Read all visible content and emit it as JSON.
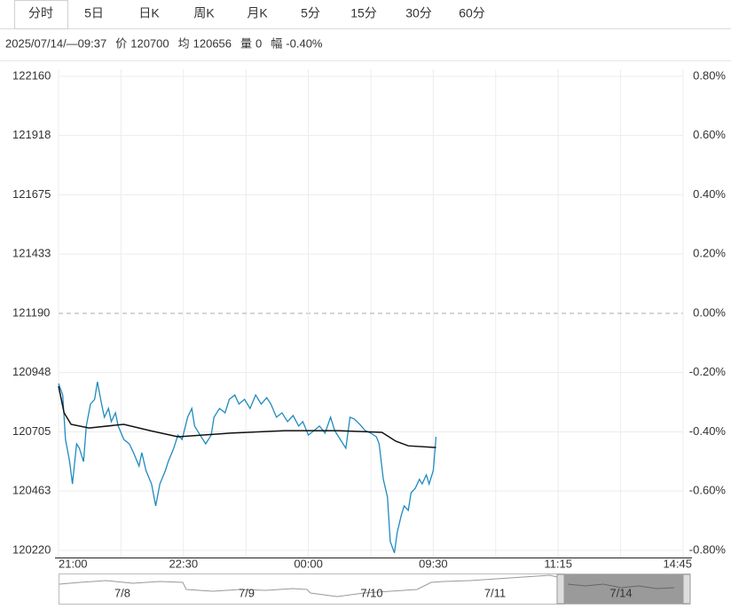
{
  "tabs": [
    "分时",
    "5日",
    "日K",
    "周K",
    "月K",
    "5分",
    "15分",
    "30分",
    "60分"
  ],
  "info": {
    "datetime": "2025/07/14/—09:37",
    "items": [
      {
        "label": "价",
        "value": "120700"
      },
      {
        "label": "均",
        "value": "120656"
      },
      {
        "label": "量",
        "value": "0"
      },
      {
        "label": "幅",
        "value": "-0.40%"
      }
    ]
  },
  "chart_data": {
    "type": "line",
    "xlim": [
      0,
      450
    ],
    "xticks": [
      {
        "value": 0,
        "label": "21:00"
      },
      {
        "value": 90,
        "label": "22:30"
      },
      {
        "value": 180,
        "label": "00:00"
      },
      {
        "value": 270,
        "label": "09:30"
      },
      {
        "value": 360,
        "label": "11:15"
      },
      {
        "value": 450,
        "label": "14:45"
      }
    ],
    "ylim": [
      120220,
      122160
    ],
    "yticks": [
      122160,
      121918,
      121675,
      121433,
      121190,
      120948,
      120705,
      120463,
      120220
    ],
    "y2lim": [
      -0.8,
      0.8
    ],
    "y2ticks": [
      {
        "value": 0.8,
        "label": "0.80%"
      },
      {
        "value": 0.6,
        "label": "0.60%"
      },
      {
        "value": 0.4,
        "label": "0.40%"
      },
      {
        "value": 0.2,
        "label": "0.20%"
      },
      {
        "value": 0,
        "label": "0.00%"
      },
      {
        "value": -0.2,
        "label": "-0.20%"
      },
      {
        "value": -0.4,
        "label": "-0.40%"
      },
      {
        "value": -0.6,
        "label": "-0.60%"
      },
      {
        "value": -0.8,
        "label": "-0.80%"
      }
    ],
    "series": [
      {
        "color": "#1f8bbf",
        "x": [
          0,
          3,
          5,
          8,
          10,
          13,
          15,
          18,
          20,
          23,
          26,
          28,
          31,
          33,
          36,
          38,
          41,
          43,
          47,
          51,
          54,
          58,
          60,
          63,
          67,
          70,
          73,
          77,
          79,
          83,
          86,
          89,
          93,
          96,
          98,
          102,
          106,
          110,
          112,
          116,
          120,
          123,
          127,
          130,
          134,
          138,
          142,
          146,
          150,
          153,
          157,
          161,
          165,
          169,
          173,
          176,
          180,
          184,
          188,
          192,
          196,
          199,
          203,
          207,
          210,
          213,
          217,
          221,
          225,
          229,
          231,
          234,
          237,
          239,
          242,
          244,
          247,
          249,
          252,
          254,
          257,
          260,
          262,
          265,
          267,
          270,
          272
        ],
        "values": [
          120903,
          120856,
          120674,
          120583,
          120492,
          120656,
          120638,
          120583,
          120729,
          120819,
          120838,
          120910,
          120819,
          120765,
          120801,
          120747,
          120783,
          120729,
          120674,
          120656,
          120620,
          120565,
          120620,
          120547,
          120492,
          120402,
          120492,
          120547,
          120583,
          120638,
          120692,
          120674,
          120765,
          120801,
          120729,
          120692,
          120656,
          120692,
          120765,
          120801,
          120783,
          120838,
          120856,
          120819,
          120838,
          120801,
          120856,
          120819,
          120845,
          120819,
          120765,
          120783,
          120747,
          120772,
          120729,
          120747,
          120692,
          120710,
          120729,
          120700,
          120765,
          120710,
          120674,
          120638,
          120765,
          120758,
          120736,
          120710,
          120700,
          120685,
          120656,
          120511,
          120438,
          120256,
          120210,
          120293,
          120365,
          120402,
          120384,
          120456,
          120474,
          120511,
          120492,
          120529,
          120492,
          120547,
          120685
        ]
      },
      {
        "color": "#111111",
        "x": [
          0,
          4,
          9,
          22,
          47,
          66,
          86,
          124,
          163,
          201,
          233,
          243,
          252,
          272
        ],
        "values": [
          120892,
          120783,
          120736,
          120721,
          120736,
          120710,
          120685,
          120700,
          120710,
          120710,
          120703,
          120667,
          120648,
          120641
        ]
      }
    ]
  },
  "navigator": {
    "labels": [
      "7/8",
      "7/9",
      "7/10",
      "7/11",
      "7/14"
    ]
  }
}
